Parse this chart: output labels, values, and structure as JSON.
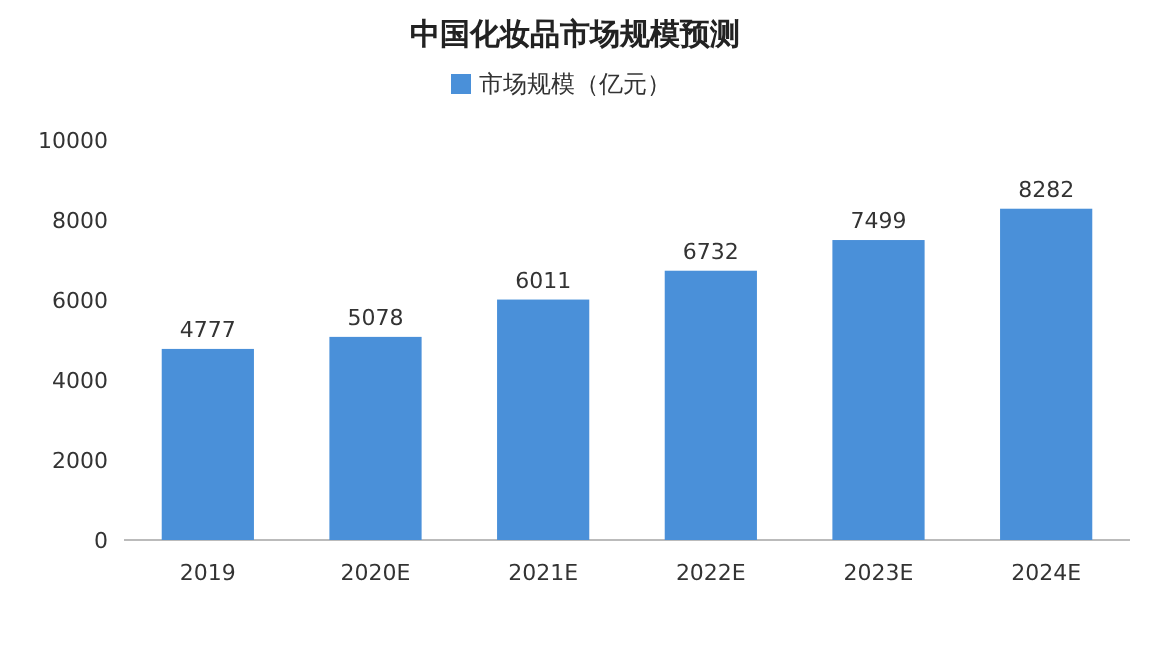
{
  "chart_data": {
    "type": "bar",
    "title": "中国化妆品市场规模预测",
    "categories": [
      "2019",
      "2020E",
      "2021E",
      "2022E",
      "2023E",
      "2024E"
    ],
    "series": [
      {
        "name": "市场规模（亿元）",
        "color": "#4a90d9",
        "values": [
          4777,
          5078,
          6011,
          6732,
          7499,
          8282
        ]
      }
    ],
    "ylim": [
      0,
      10000
    ],
    "yticks": [
      0,
      2000,
      4000,
      6000,
      8000,
      10000
    ],
    "data_labels": true,
    "legend": "top",
    "grid": false
  }
}
